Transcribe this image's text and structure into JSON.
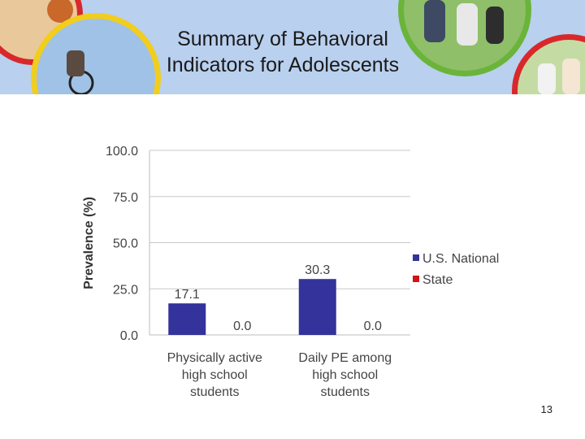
{
  "slide": {
    "title_line1": "Summary of Behavioral",
    "title_line2": "Indicators for Adolescents",
    "page_number": "13"
  },
  "chart_data": {
    "type": "bar",
    "title": "",
    "xlabel": "",
    "ylabel": "Prevalence (%)",
    "ylim": [
      0,
      100
    ],
    "yticks": [
      "0.0",
      "25.0",
      "50.0",
      "75.0",
      "100.0"
    ],
    "grid": true,
    "legend_position": "right",
    "categories": [
      [
        "Physically active",
        "high school",
        "students"
      ],
      [
        "Daily PE among",
        "high school",
        "students"
      ]
    ],
    "series": [
      {
        "name": "U.S. National",
        "values": [
          17.1,
          30.3
        ],
        "labels": [
          "17.1",
          "30.3"
        ],
        "color": "#33339b"
      },
      {
        "name": "State",
        "values": [
          0.0,
          0.0
        ],
        "labels": [
          "0.0",
          "0.0"
        ],
        "color": "#d21414"
      }
    ]
  }
}
